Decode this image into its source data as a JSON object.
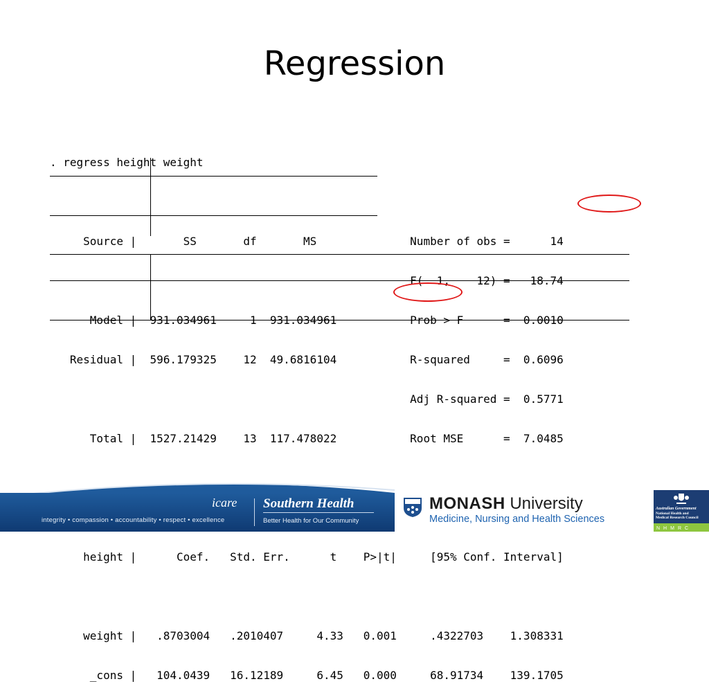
{
  "slide": {
    "title": "Regression"
  },
  "stata_output": {
    "command": ". regress height weight",
    "anova_header": "     Source |       SS       df       MS              Number of obs =      14",
    "anova_fstat": "                                                      F(  1,    12) =   18.74",
    "anova_model": "      Model |  931.034961     1  931.034961           Prob > F      =  0.0010",
    "anova_resid": "   Residual |  596.179325    12  49.6816104           R-squared     =  0.6096",
    "anova_adjr": "                                                      Adj R-squared =  0.5771",
    "anova_total": "      Total |  1527.21429    13  117.478022           Root MSE      =  7.0485",
    "coef_header": "     height |      Coef.   Std. Err.      t    P>|t|     [95% Conf. Interval]",
    "coef_weight": "     weight |   .8703004   .2010407     4.33   0.001     .4322703    1.308331",
    "coef_cons": "      _cons |   104.0439   16.12189     6.45   0.000     68.91734    139.1705"
  },
  "footer": {
    "tagline": "integrity • compassion • accountability • respect • excellence",
    "icare": "icare",
    "southern_health": "Southern Health",
    "southern_health_sub": "Better Health for Our Community",
    "monash_bold": "MONASH",
    "monash_rest": " University",
    "monash_sub": "Medicine, Nursing and Health Sciences",
    "nhmrc_line1": "Australian Government",
    "nhmrc_line2": "National Health and",
    "nhmrc_line3": "Medical Research Council",
    "nhmrc_letters": "NHMRC"
  },
  "colors": {
    "highlight": "#e01818",
    "footer_blue": "#1f5b9c",
    "nhmrc_blue": "#1c3d73",
    "nhmrc_green": "#8ec63f",
    "monash_blue": "#1e63b0"
  }
}
